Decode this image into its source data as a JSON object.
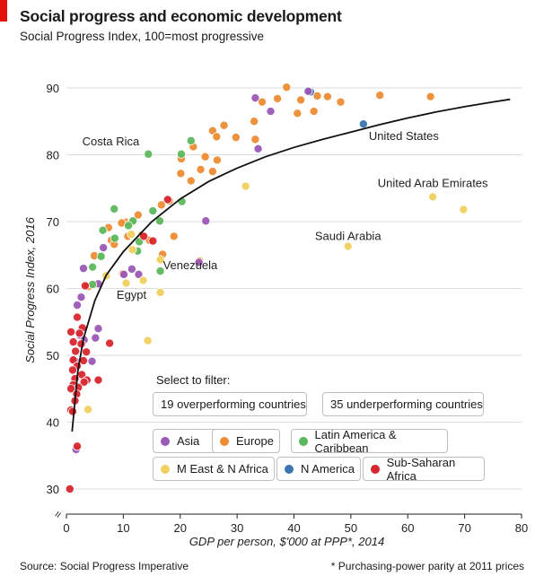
{
  "header": {
    "title": "Social progress and economic development",
    "subtitle": "Social Progress Index, 100=most progressive"
  },
  "chart_data": {
    "type": "scatter",
    "xlabel": "GDP per person, $'000 at PPP*, 2014",
    "ylabel": "Social Progress Index, 2016",
    "xlim": [
      0,
      80
    ],
    "ylim": [
      30,
      90
    ],
    "x_ticks": [
      0,
      10,
      20,
      30,
      40,
      50,
      60,
      70,
      80
    ],
    "y_ticks": [
      30,
      40,
      50,
      60,
      70,
      80,
      90
    ],
    "grid": "horizontal",
    "axis_break_symbol": "≈",
    "region_colors": {
      "Asia": "#9b59b6",
      "Europe": "#ee8c33",
      "Latin America & Caribbean": "#5cb85c",
      "M East & N Africa": "#f0d060",
      "N America": "#3a75b0",
      "Sub-Saharan Africa": "#d9262e"
    },
    "trend_curve": [
      [
        1,
        38.6
      ],
      [
        2,
        47.6
      ],
      [
        3,
        52.5
      ],
      [
        5,
        58.2
      ],
      [
        7,
        62
      ],
      [
        10,
        65.5
      ],
      [
        15,
        70
      ],
      [
        20,
        73.4
      ],
      [
        25,
        76
      ],
      [
        30,
        78
      ],
      [
        35,
        79.7
      ],
      [
        40,
        81.1
      ],
      [
        45,
        82.3
      ],
      [
        50,
        83.4
      ],
      [
        55,
        84.5
      ],
      [
        60,
        85.5
      ],
      [
        65,
        86.4
      ],
      [
        70,
        87.2
      ],
      [
        75,
        87.9
      ],
      [
        78,
        88.3
      ]
    ],
    "annotations": [
      {
        "text": "Costa Rica",
        "x": 14.4,
        "y": 80.1,
        "anchor": "end"
      },
      {
        "text": "United States",
        "x": 52.2,
        "y": 84.6,
        "anchor": "start"
      },
      {
        "text": "United Arab Emirates",
        "x": 64.4,
        "y": 73.7,
        "anchor": "middle"
      },
      {
        "text": "Saudi Arabia",
        "x": 49.5,
        "y": 66.3,
        "anchor": "middle"
      },
      {
        "text": "Venezuela",
        "x": 16.5,
        "y": 62.5,
        "anchor": "start"
      },
      {
        "text": "Egypt",
        "x": 10.5,
        "y": 60.5,
        "anchor": "middle"
      }
    ],
    "points": [
      {
        "x": 42.9,
        "y": 89.4,
        "r": "N America"
      },
      {
        "x": 52.2,
        "y": 84.6,
        "r": "N America"
      },
      {
        "x": 38.7,
        "y": 90.1,
        "r": "Europe"
      },
      {
        "x": 45.9,
        "y": 88.7,
        "r": "Europe"
      },
      {
        "x": 55.1,
        "y": 88.9,
        "r": "Europe"
      },
      {
        "x": 64.0,
        "y": 88.7,
        "r": "Europe"
      },
      {
        "x": 44.1,
        "y": 88.8,
        "r": "Europe"
      },
      {
        "x": 41.2,
        "y": 88.2,
        "r": "Europe"
      },
      {
        "x": 48.2,
        "y": 87.9,
        "r": "Europe"
      },
      {
        "x": 37.1,
        "y": 88.4,
        "r": "Europe"
      },
      {
        "x": 40.6,
        "y": 86.2,
        "r": "Europe"
      },
      {
        "x": 43.5,
        "y": 86.5,
        "r": "Europe"
      },
      {
        "x": 34.4,
        "y": 87.9,
        "r": "Europe"
      },
      {
        "x": 27.7,
        "y": 84.4,
        "r": "Europe"
      },
      {
        "x": 33.0,
        "y": 85.0,
        "r": "Europe"
      },
      {
        "x": 25.7,
        "y": 83.6,
        "r": "Europe"
      },
      {
        "x": 29.8,
        "y": 82.6,
        "r": "Europe"
      },
      {
        "x": 26.4,
        "y": 82.7,
        "r": "Europe"
      },
      {
        "x": 33.2,
        "y": 82.3,
        "r": "Europe"
      },
      {
        "x": 22.3,
        "y": 81.2,
        "r": "Europe"
      },
      {
        "x": 20.2,
        "y": 79.4,
        "r": "Europe"
      },
      {
        "x": 24.4,
        "y": 79.7,
        "r": "Europe"
      },
      {
        "x": 26.5,
        "y": 79.2,
        "r": "Europe"
      },
      {
        "x": 23.6,
        "y": 77.8,
        "r": "Europe"
      },
      {
        "x": 20.1,
        "y": 77.2,
        "r": "Europe"
      },
      {
        "x": 25.7,
        "y": 77.5,
        "r": "Europe"
      },
      {
        "x": 21.9,
        "y": 76.1,
        "r": "Europe"
      },
      {
        "x": 18.1,
        "y": 73.1,
        "r": "Europe"
      },
      {
        "x": 16.7,
        "y": 72.5,
        "r": "Europe"
      },
      {
        "x": 12.6,
        "y": 71.0,
        "r": "Europe"
      },
      {
        "x": 10.5,
        "y": 69.9,
        "r": "Europe"
      },
      {
        "x": 9.7,
        "y": 69.8,
        "r": "Europe"
      },
      {
        "x": 11.3,
        "y": 69.8,
        "r": "Europe"
      },
      {
        "x": 7.4,
        "y": 69.1,
        "r": "Europe"
      },
      {
        "x": 13.3,
        "y": 68.0,
        "r": "Europe"
      },
      {
        "x": 18.9,
        "y": 67.8,
        "r": "Europe"
      },
      {
        "x": 10.8,
        "y": 67.8,
        "r": "Europe"
      },
      {
        "x": 7.9,
        "y": 67.2,
        "r": "Europe"
      },
      {
        "x": 14.6,
        "y": 67.2,
        "r": "Europe"
      },
      {
        "x": 16.9,
        "y": 65.1,
        "r": "Europe"
      },
      {
        "x": 8.4,
        "y": 66.6,
        "r": "Europe"
      },
      {
        "x": 4.9,
        "y": 64.9,
        "r": "Europe"
      },
      {
        "x": 23.4,
        "y": 64.1,
        "r": "Europe"
      },
      {
        "x": 9.9,
        "y": 62.2,
        "r": "Europe"
      },
      {
        "x": 5.2,
        "y": 60.6,
        "r": "Europe"
      },
      {
        "x": 3.9,
        "y": 60.3,
        "r": "Europe"
      },
      {
        "x": 33.2,
        "y": 88.5,
        "r": "Asia"
      },
      {
        "x": 35.9,
        "y": 86.5,
        "r": "Asia"
      },
      {
        "x": 42.5,
        "y": 89.5,
        "r": "Asia"
      },
      {
        "x": 33.7,
        "y": 80.9,
        "r": "Asia"
      },
      {
        "x": 24.5,
        "y": 70.1,
        "r": "Asia"
      },
      {
        "x": 23.3,
        "y": 63.9,
        "r": "Asia"
      },
      {
        "x": 6.5,
        "y": 66.1,
        "r": "Asia"
      },
      {
        "x": 10.1,
        "y": 62.1,
        "r": "Asia"
      },
      {
        "x": 11.5,
        "y": 62.9,
        "r": "Asia"
      },
      {
        "x": 12.7,
        "y": 62.1,
        "r": "Asia"
      },
      {
        "x": 3.0,
        "y": 63.0,
        "r": "Asia"
      },
      {
        "x": 5.6,
        "y": 60.7,
        "r": "Asia"
      },
      {
        "x": 2.6,
        "y": 58.7,
        "r": "Asia"
      },
      {
        "x": 1.9,
        "y": 57.5,
        "r": "Asia"
      },
      {
        "x": 5.6,
        "y": 54.0,
        "r": "Asia"
      },
      {
        "x": 2.4,
        "y": 53.0,
        "r": "Asia"
      },
      {
        "x": 5.1,
        "y": 52.6,
        "r": "Asia"
      },
      {
        "x": 3.1,
        "y": 52.3,
        "r": "Asia"
      },
      {
        "x": 1.5,
        "y": 49.2,
        "r": "Asia"
      },
      {
        "x": 4.5,
        "y": 49.1,
        "r": "Asia"
      },
      {
        "x": 1.7,
        "y": 35.9,
        "r": "Asia"
      },
      {
        "x": 14.4,
        "y": 80.1,
        "r": "Latin America & Caribbean"
      },
      {
        "x": 20.2,
        "y": 80.1,
        "r": "Latin America & Caribbean"
      },
      {
        "x": 21.9,
        "y": 82.1,
        "r": "Latin America & Caribbean"
      },
      {
        "x": 8.4,
        "y": 71.9,
        "r": "Latin America & Caribbean"
      },
      {
        "x": 11.7,
        "y": 70.1,
        "r": "Latin America & Caribbean"
      },
      {
        "x": 20.3,
        "y": 73.0,
        "r": "Latin America & Caribbean"
      },
      {
        "x": 15.2,
        "y": 71.6,
        "r": "Latin America & Caribbean"
      },
      {
        "x": 16.4,
        "y": 70.1,
        "r": "Latin America & Caribbean"
      },
      {
        "x": 10.9,
        "y": 69.4,
        "r": "Latin America & Caribbean"
      },
      {
        "x": 6.4,
        "y": 68.7,
        "r": "Latin America & Caribbean"
      },
      {
        "x": 8.5,
        "y": 67.5,
        "r": "Latin America & Caribbean"
      },
      {
        "x": 12.8,
        "y": 67.0,
        "r": "Latin America & Caribbean"
      },
      {
        "x": 12.5,
        "y": 65.6,
        "r": "Latin America & Caribbean"
      },
      {
        "x": 6.1,
        "y": 64.8,
        "r": "Latin America & Caribbean"
      },
      {
        "x": 4.6,
        "y": 63.2,
        "r": "Latin America & Caribbean"
      },
      {
        "x": 16.5,
        "y": 62.6,
        "r": "Latin America & Caribbean"
      },
      {
        "x": 4.6,
        "y": 60.6,
        "r": "Latin America & Caribbean"
      },
      {
        "x": 64.4,
        "y": 73.7,
        "r": "M East & N Africa"
      },
      {
        "x": 69.8,
        "y": 71.8,
        "r": "M East & N Africa"
      },
      {
        "x": 31.5,
        "y": 75.3,
        "r": "M East & N Africa"
      },
      {
        "x": 49.5,
        "y": 66.3,
        "r": "M East & N Africa"
      },
      {
        "x": 11.4,
        "y": 68.1,
        "r": "M East & N Africa"
      },
      {
        "x": 11.6,
        "y": 65.8,
        "r": "M East & N Africa"
      },
      {
        "x": 16.5,
        "y": 64.3,
        "r": "M East & N Africa"
      },
      {
        "x": 7.0,
        "y": 61.9,
        "r": "M East & N Africa"
      },
      {
        "x": 10.5,
        "y": 60.8,
        "r": "M East & N Africa"
      },
      {
        "x": 13.5,
        "y": 61.2,
        "r": "M East & N Africa"
      },
      {
        "x": 16.5,
        "y": 59.4,
        "r": "M East & N Africa"
      },
      {
        "x": 14.3,
        "y": 52.2,
        "r": "M East & N Africa"
      },
      {
        "x": 3.8,
        "y": 41.9,
        "r": "M East & N Africa"
      },
      {
        "x": 17.8,
        "y": 73.3,
        "r": "Sub-Saharan Africa"
      },
      {
        "x": 13.6,
        "y": 67.8,
        "r": "Sub-Saharan Africa"
      },
      {
        "x": 15.2,
        "y": 67.1,
        "r": "Sub-Saharan Africa"
      },
      {
        "x": 3.3,
        "y": 60.4,
        "r": "Sub-Saharan Africa"
      },
      {
        "x": 1.9,
        "y": 55.7,
        "r": "Sub-Saharan Africa"
      },
      {
        "x": 2.8,
        "y": 54.1,
        "r": "Sub-Saharan Africa"
      },
      {
        "x": 0.8,
        "y": 53.5,
        "r": "Sub-Saharan Africa"
      },
      {
        "x": 2.3,
        "y": 53.3,
        "r": "Sub-Saharan Africa"
      },
      {
        "x": 1.2,
        "y": 52.0,
        "r": "Sub-Saharan Africa"
      },
      {
        "x": 7.6,
        "y": 51.8,
        "r": "Sub-Saharan Africa"
      },
      {
        "x": 2.6,
        "y": 51.7,
        "r": "Sub-Saharan Africa"
      },
      {
        "x": 1.6,
        "y": 50.6,
        "r": "Sub-Saharan Africa"
      },
      {
        "x": 3.5,
        "y": 50.5,
        "r": "Sub-Saharan Africa"
      },
      {
        "x": 1.2,
        "y": 49.3,
        "r": "Sub-Saharan Africa"
      },
      {
        "x": 3.0,
        "y": 49.2,
        "r": "Sub-Saharan Africa"
      },
      {
        "x": 1.9,
        "y": 48.4,
        "r": "Sub-Saharan Africa"
      },
      {
        "x": 1.1,
        "y": 47.8,
        "r": "Sub-Saharan Africa"
      },
      {
        "x": 2.7,
        "y": 47.1,
        "r": "Sub-Saharan Africa"
      },
      {
        "x": 1.5,
        "y": 46.5,
        "r": "Sub-Saharan Africa"
      },
      {
        "x": 3.6,
        "y": 46.3,
        "r": "Sub-Saharan Africa"
      },
      {
        "x": 5.6,
        "y": 46.3,
        "r": "Sub-Saharan Africa"
      },
      {
        "x": 3.1,
        "y": 46.0,
        "r": "Sub-Saharan Africa"
      },
      {
        "x": 1.2,
        "y": 45.6,
        "r": "Sub-Saharan Africa"
      },
      {
        "x": 2.1,
        "y": 45.2,
        "r": "Sub-Saharan Africa"
      },
      {
        "x": 0.8,
        "y": 45.0,
        "r": "Sub-Saharan Africa"
      },
      {
        "x": 1.8,
        "y": 44.2,
        "r": "Sub-Saharan Africa"
      },
      {
        "x": 1.5,
        "y": 43.2,
        "r": "Sub-Saharan Africa"
      },
      {
        "x": 0.8,
        "y": 41.8,
        "r": "Sub-Saharan Africa"
      },
      {
        "x": 1.1,
        "y": 41.6,
        "r": "Sub-Saharan Africa"
      },
      {
        "x": 1.9,
        "y": 36.4,
        "r": "Sub-Saharan Africa"
      },
      {
        "x": 0.6,
        "y": 30.0,
        "r": "Sub-Saharan Africa"
      }
    ]
  },
  "filter": {
    "label": "Select to filter:",
    "performance_buttons": [
      {
        "label": "19 overperforming countries"
      },
      {
        "label": "35 underperforming countries"
      }
    ],
    "region_buttons": [
      {
        "label": "Asia",
        "color": "#9b59b6"
      },
      {
        "label": "Europe",
        "color": "#ee8c33"
      },
      {
        "label": "Latin America & Caribbean",
        "color": "#5cb85c"
      },
      {
        "label": "M East & N Africa",
        "color": "#f0d060"
      },
      {
        "label": "N America",
        "color": "#3a75b0"
      },
      {
        "label": "Sub-Saharan Africa",
        "color": "#d9262e"
      }
    ]
  },
  "footer": {
    "source": "Source: Social Progress Imperative",
    "footnote": "* Purchasing-power parity at 2011 prices"
  }
}
